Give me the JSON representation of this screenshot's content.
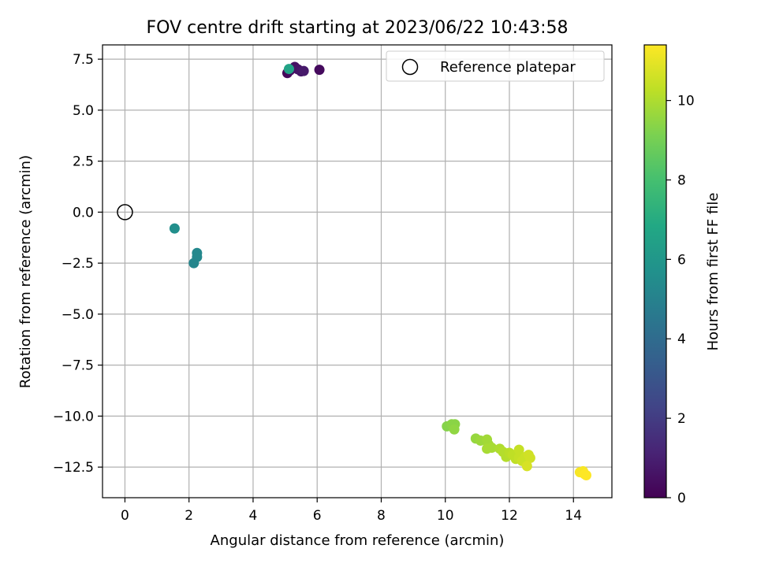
{
  "chart_data": {
    "type": "scatter",
    "title": "FOV centre drift starting at 2023/06/22 10:43:58",
    "xlabel": "Angular distance from reference (arcmin)",
    "ylabel": "Rotation from reference (arcmin)",
    "xlim": [
      -0.7,
      15.2
    ],
    "ylim": [
      -14.0,
      8.2
    ],
    "xticks": [
      0,
      2,
      4,
      6,
      8,
      10,
      12,
      14
    ],
    "yticks": [
      7.5,
      5.0,
      2.5,
      0.0,
      -2.5,
      -5.0,
      -7.5,
      -10.0,
      -12.5
    ],
    "xtick_labels": [
      "0",
      "2",
      "4",
      "6",
      "8",
      "10",
      "12",
      "14"
    ],
    "ytick_labels": [
      "7.5",
      "5.0",
      "2.5",
      "0.0",
      "−2.5",
      "−5.0",
      "−7.5",
      "−10.0",
      "−12.5"
    ],
    "grid": true,
    "legend": {
      "position": "top-right",
      "entries": [
        "Reference platepar"
      ]
    },
    "reference_point": {
      "x": 0,
      "y": 0
    },
    "colorbar": {
      "label": "Hours from first FF file",
      "colormap": "viridis",
      "range": [
        0,
        11.4
      ],
      "ticks": [
        0,
        2,
        4,
        6,
        8,
        10
      ],
      "tick_labels": [
        "0",
        "2",
        "4",
        "6",
        "8",
        "10"
      ]
    },
    "points": [
      {
        "x": 5.07,
        "y": 6.82,
        "c": 0.2
      },
      {
        "x": 5.15,
        "y": 6.95,
        "c": 0.4
      },
      {
        "x": 5.3,
        "y": 7.12,
        "c": 0.5
      },
      {
        "x": 5.4,
        "y": 7.0,
        "c": 0.6
      },
      {
        "x": 5.5,
        "y": 6.9,
        "c": 0.7
      },
      {
        "x": 5.58,
        "y": 6.92,
        "c": 0.8
      },
      {
        "x": 6.07,
        "y": 6.98,
        "c": 0.3
      },
      {
        "x": 5.12,
        "y": 7.02,
        "c": 6.6
      },
      {
        "x": 1.55,
        "y": -0.8,
        "c": 5.6
      },
      {
        "x": 2.25,
        "y": -2.0,
        "c": 5.3
      },
      {
        "x": 2.25,
        "y": -2.2,
        "c": 5.3
      },
      {
        "x": 2.15,
        "y": -2.5,
        "c": 5.2
      },
      {
        "x": 10.05,
        "y": -10.5,
        "c": 9.3
      },
      {
        "x": 10.2,
        "y": -10.4,
        "c": 9.4
      },
      {
        "x": 10.3,
        "y": -10.4,
        "c": 9.4
      },
      {
        "x": 10.28,
        "y": -10.65,
        "c": 9.5
      },
      {
        "x": 10.95,
        "y": -11.1,
        "c": 9.6
      },
      {
        "x": 11.1,
        "y": -11.2,
        "c": 9.7
      },
      {
        "x": 11.3,
        "y": -11.15,
        "c": 9.8
      },
      {
        "x": 11.35,
        "y": -11.4,
        "c": 9.8
      },
      {
        "x": 11.3,
        "y": -11.6,
        "c": 9.9
      },
      {
        "x": 11.45,
        "y": -11.55,
        "c": 9.9
      },
      {
        "x": 11.7,
        "y": -11.6,
        "c": 10.0
      },
      {
        "x": 11.8,
        "y": -11.75,
        "c": 10.1
      },
      {
        "x": 11.9,
        "y": -12.0,
        "c": 10.1
      },
      {
        "x": 12.0,
        "y": -11.8,
        "c": 10.2
      },
      {
        "x": 12.1,
        "y": -11.9,
        "c": 10.3
      },
      {
        "x": 12.2,
        "y": -12.1,
        "c": 10.3
      },
      {
        "x": 12.3,
        "y": -11.65,
        "c": 10.4
      },
      {
        "x": 12.3,
        "y": -12.05,
        "c": 10.4
      },
      {
        "x": 12.4,
        "y": -12.2,
        "c": 10.5
      },
      {
        "x": 12.5,
        "y": -12.0,
        "c": 10.5
      },
      {
        "x": 12.6,
        "y": -11.9,
        "c": 10.6
      },
      {
        "x": 12.65,
        "y": -12.05,
        "c": 10.6
      },
      {
        "x": 12.55,
        "y": -12.45,
        "c": 10.7
      },
      {
        "x": 14.2,
        "y": -12.75,
        "c": 11.3
      },
      {
        "x": 14.3,
        "y": -12.7,
        "c": 11.3
      },
      {
        "x": 14.35,
        "y": -12.85,
        "c": 11.4
      },
      {
        "x": 14.4,
        "y": -12.9,
        "c": 11.4
      }
    ]
  }
}
